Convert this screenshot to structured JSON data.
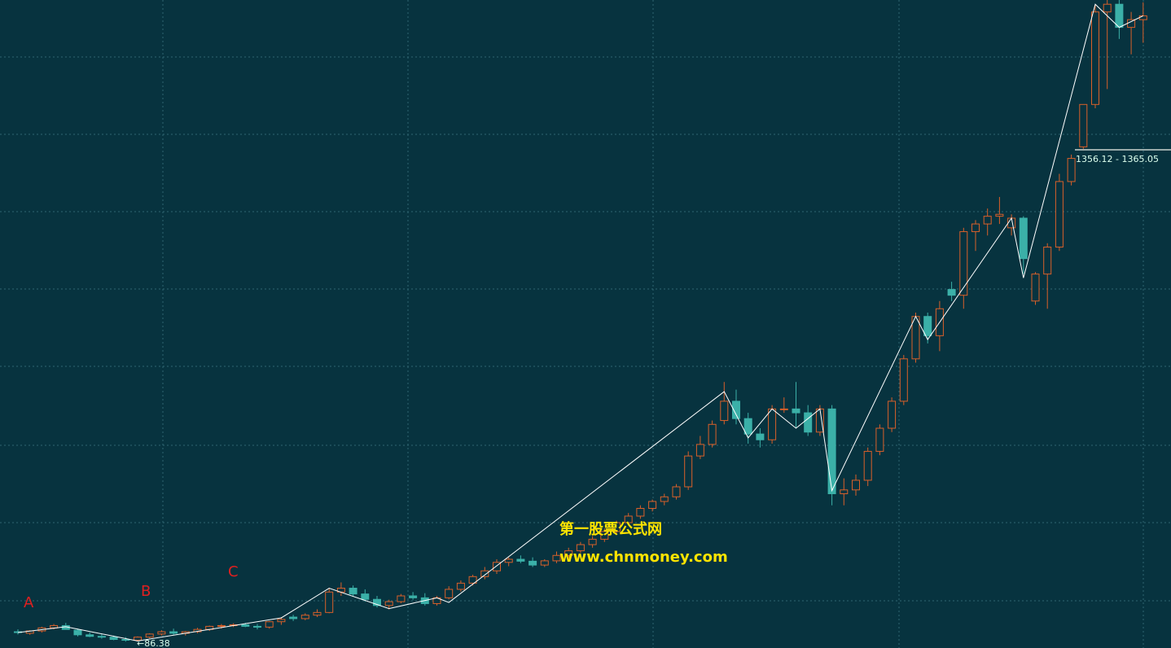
{
  "chart_data": {
    "type": "candlestick",
    "up_color": "#d9602a",
    "down_color": "#3bb0a8",
    "line_color": "#ffffff",
    "ylim": [
      69.8,
      1751
    ],
    "open": [
      112,
      108,
      114,
      122,
      128,
      116,
      104,
      100,
      98,
      92,
      90,
      98,
      106,
      112,
      108,
      112,
      118,
      126,
      128,
      130,
      126,
      124,
      138,
      150,
      146,
      155,
      162,
      215,
      225,
      210,
      196,
      180,
      190,
      205,
      200,
      185,
      200,
      222,
      238,
      255,
      270,
      292,
      300,
      295,
      285,
      296,
      310,
      322,
      338,
      352,
      372,
      395,
      412,
      432,
      450,
      462,
      488,
      568,
      598,
      660,
      710,
      665,
      625,
      610,
      690,
      690,
      680,
      630,
      690,
      470,
      480,
      505,
      580,
      640,
      710,
      820,
      930,
      880,
      1000,
      985,
      1150,
      1170,
      1190,
      1160,
      1185,
      970,
      1040,
      1110,
      1280,
      1370,
      1480,
      1720,
      1740,
      1680,
      1700
    ],
    "high": [
      118,
      116,
      125,
      132,
      135,
      120,
      110,
      106,
      102,
      98,
      100,
      108,
      116,
      120,
      114,
      122,
      128,
      132,
      134,
      135,
      132,
      140,
      150,
      156,
      160,
      170,
      225,
      240,
      232,
      222,
      205,
      195,
      210,
      215,
      212,
      205,
      230,
      245,
      260,
      280,
      300,
      305,
      310,
      305,
      300,
      320,
      330,
      345,
      360,
      380,
      400,
      420,
      440,
      455,
      470,
      495,
      580,
      620,
      660,
      760,
      740,
      680,
      640,
      700,
      720,
      760,
      700,
      700,
      700,
      510,
      520,
      590,
      650,
      720,
      830,
      940,
      940,
      970,
      1020,
      1160,
      1180,
      1210,
      1240,
      1195,
      1190,
      1045,
      1120,
      1300,
      1350,
      1480,
      1740,
      1760,
      1751,
      1720,
      1745
    ],
    "low": [
      105,
      104,
      110,
      118,
      120,
      100,
      98,
      94,
      90,
      86.38,
      86.5,
      95,
      102,
      104,
      102,
      108,
      114,
      120,
      124,
      124,
      118,
      120,
      130,
      140,
      142,
      150,
      160,
      205,
      205,
      190,
      175,
      170,
      186,
      195,
      180,
      180,
      196,
      216,
      232,
      248,
      262,
      282,
      290,
      280,
      280,
      290,
      304,
      316,
      330,
      345,
      366,
      388,
      405,
      424,
      440,
      455,
      480,
      560,
      590,
      650,
      650,
      600,
      590,
      600,
      680,
      640,
      620,
      620,
      440,
      440,
      465,
      490,
      570,
      630,
      700,
      810,
      860,
      840,
      970,
      950,
      1100,
      1140,
      1170,
      1140,
      1040,
      960,
      950,
      1100,
      1270,
      1360,
      1470,
      1520,
      1650,
      1610,
      1640
    ],
    "close": [
      110,
      114,
      122,
      128,
      118,
      104,
      100,
      98,
      92,
      90,
      98,
      106,
      112,
      108,
      112,
      118,
      126,
      128,
      130,
      126,
      124,
      138,
      144,
      146,
      155,
      162,
      215,
      225,
      210,
      196,
      180,
      190,
      205,
      200,
      185,
      200,
      222,
      238,
      255,
      270,
      292,
      300,
      295,
      285,
      296,
      310,
      322,
      338,
      352,
      372,
      395,
      412,
      432,
      450,
      462,
      488,
      568,
      598,
      650,
      710,
      665,
      625,
      610,
      690,
      690,
      680,
      630,
      690,
      470,
      480,
      505,
      580,
      640,
      710,
      820,
      930,
      880,
      950,
      985,
      1150,
      1170,
      1190,
      1195,
      1185,
      1080,
      1040,
      1110,
      1280,
      1340,
      1480,
      1720,
      1740,
      1680,
      1700,
      1710
    ],
    "zigzag": {
      "x": [
        0,
        4,
        10,
        22,
        26,
        31,
        35,
        36,
        59,
        61,
        63,
        65,
        67,
        68,
        75,
        76,
        83,
        84,
        90,
        92,
        94
      ],
      "values": [
        110,
        125,
        88,
        148,
        225,
        172,
        200,
        188,
        735,
        615,
        690,
        640,
        690,
        478,
        930,
        870,
        1185,
        1030,
        1740,
        1680,
        1710
      ]
    },
    "annotations": [
      "A",
      "B",
      "C"
    ],
    "low_label": "←86.38",
    "range_label": "1356.12 - 1365.05",
    "watermark": [
      "第一股票公式网",
      "www.chnmoney.com"
    ]
  }
}
